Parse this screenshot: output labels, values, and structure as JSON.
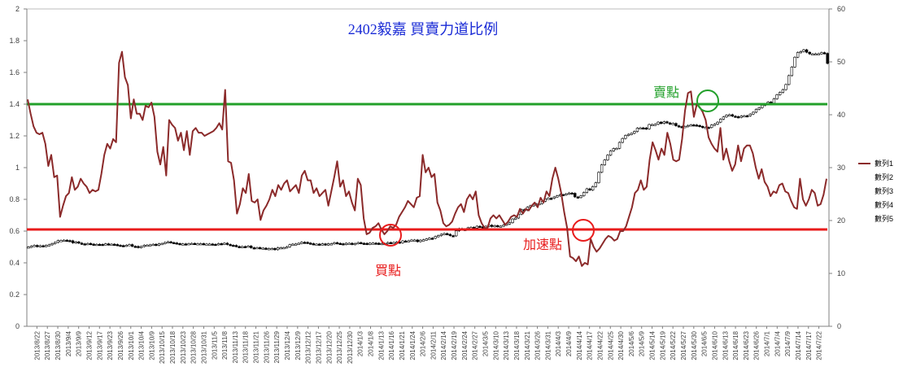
{
  "chart_data": {
    "type": "line",
    "title": "2402毅嘉 買賣力道比例",
    "y_left": {
      "min": 0,
      "max": 2,
      "ticks": [
        "0",
        "0.2",
        "0.4",
        "0.6",
        "0.8",
        "1",
        "1.2",
        "1.4",
        "1.6",
        "1.8",
        "2"
      ]
    },
    "y_right": {
      "min": 0,
      "max": 60,
      "ticks": [
        "0",
        "10",
        "20",
        "30",
        "40",
        "50",
        "60"
      ]
    },
    "x_labels": [
      "2013/8/22",
      "2013/8/27",
      "2013/8/30",
      "2013/9/4",
      "2013/9/9",
      "2013/9/12",
      "2013/9/17",
      "2013/9/23",
      "2013/9/26",
      "2013/10/1",
      "2013/10/4",
      "2013/10/9",
      "2013/10/15",
      "2013/10/18",
      "2013/10/23",
      "2013/10/28",
      "2013/10/31",
      "2013/11/5",
      "2013/11/8",
      "2013/11/13",
      "2013/11/18",
      "2013/11/21",
      "2013/11/26",
      "2013/11/29",
      "2013/12/4",
      "2013/12/9",
      "2013/12/12",
      "2013/12/17",
      "2013/12/20",
      "2013/12/25",
      "2013/12/30",
      "2014/1/3",
      "2014/1/8",
      "2014/1/13",
      "2014/1/16",
      "2014/1/21",
      "2014/1/24",
      "2014/2/6",
      "2014/2/11",
      "2014/2/14",
      "2014/2/19",
      "2014/2/24",
      "2014/2/27",
      "2014/3/5",
      "2014/3/10",
      "2014/3/13",
      "2014/3/18",
      "2014/3/21",
      "2014/3/26",
      "2014/3/31",
      "2014/4/3",
      "2014/4/9",
      "2014/4/14",
      "2014/4/17",
      "2014/4/22",
      "2014/4/25",
      "2014/4/30",
      "2014/5/6",
      "2014/5/9",
      "2014/5/14",
      "2014/5/19",
      "2014/5/22",
      "2014/5/27",
      "2014/5/30",
      "2014/6/5",
      "2014/6/10",
      "2014/6/13",
      "2014/6/18",
      "2014/6/23",
      "2014/6/26",
      "2014/7/1",
      "2014/7/4",
      "2014/7/9",
      "2014/7/14",
      "2014/7/17",
      "2014/7/22"
    ],
    "series": [
      {
        "name": "數列1",
        "color": "#8b2a2a",
        "axis": "left",
        "values": [
          1.43,
          1.34,
          1.26,
          1.22,
          1.21,
          1.22,
          1.15,
          1.01,
          1.08,
          0.94,
          0.95,
          0.69,
          0.76,
          0.82,
          0.84,
          0.94,
          0.86,
          0.88,
          0.93,
          0.9,
          0.88,
          0.84,
          0.86,
          0.85,
          0.86,
          0.96,
          1.08,
          1.15,
          1.12,
          1.18,
          1.16,
          1.66,
          1.73,
          1.57,
          1.52,
          1.31,
          1.43,
          1.34,
          1.34,
          1.3,
          1.39,
          1.38,
          1.41,
          1.32,
          1.1,
          1.02,
          1.13,
          0.95,
          1.3,
          1.27,
          1.25,
          1.17,
          1.22,
          1.11,
          1.23,
          1.08,
          1.23,
          1.25,
          1.22,
          1.22,
          1.2,
          1.21,
          1.22,
          1.23,
          1.25,
          1.28,
          1.24,
          1.49,
          1.04,
          1.03,
          0.92,
          0.71,
          0.77,
          0.87,
          0.84,
          0.96,
          0.79,
          0.78,
          0.8,
          0.67,
          0.73,
          0.76,
          0.8,
          0.86,
          0.82,
          0.89,
          0.86,
          0.9,
          0.92,
          0.85,
          0.87,
          0.89,
          0.84,
          0.95,
          0.98,
          0.92,
          0.92,
          0.84,
          0.87,
          0.82,
          0.84,
          0.86,
          0.76,
          0.85,
          0.94,
          1.04,
          0.88,
          0.92,
          0.82,
          0.85,
          0.78,
          0.73,
          0.93,
          0.89,
          0.68,
          0.58,
          0.59,
          0.62,
          0.63,
          0.65,
          0.61,
          0.58,
          0.6,
          0.63,
          0.62,
          0.64,
          0.69,
          0.72,
          0.75,
          0.79,
          0.77,
          0.75,
          0.81,
          0.82,
          1.08,
          0.97,
          1.0,
          0.94,
          0.96,
          0.78,
          0.73,
          0.65,
          0.63,
          0.64,
          0.66,
          0.71,
          0.75,
          0.77,
          0.72,
          0.8,
          0.83,
          0.8,
          0.85,
          0.7,
          0.65,
          0.62,
          0.62,
          0.68,
          0.7,
          0.68,
          0.7,
          0.67,
          0.64,
          0.66,
          0.69,
          0.7,
          0.69,
          0.74,
          0.71,
          0.74,
          0.73,
          0.76,
          0.78,
          0.75,
          0.81,
          0.78,
          0.85,
          0.82,
          0.93,
          1.0,
          0.93,
          0.84,
          0.72,
          0.62,
          0.44,
          0.43,
          0.41,
          0.44,
          0.38,
          0.4,
          0.39,
          0.55,
          0.5,
          0.47,
          0.49,
          0.52,
          0.55,
          0.57,
          0.56,
          0.54,
          0.55,
          0.6,
          0.6,
          0.63,
          0.69,
          0.75,
          0.84,
          0.86,
          0.92,
          0.86,
          0.88,
          1.05,
          1.16,
          1.11,
          1.05,
          1.12,
          1.08,
          1.22,
          1.15,
          1.05,
          1.04,
          1.05,
          1.18,
          1.36,
          1.47,
          1.48,
          1.32,
          1.4,
          1.38,
          1.35,
          1.3,
          1.19,
          1.15,
          1.12,
          1.1,
          1.25,
          1.05,
          1.12,
          1.04,
          0.98,
          1.02,
          1.14,
          1.04,
          1.12,
          1.14,
          1.14,
          1.09,
          1.0,
          0.93,
          0.99,
          0.91,
          0.88,
          0.82,
          0.85,
          0.84,
          0.89,
          0.9,
          0.85,
          0.84,
          0.79,
          0.75,
          0.74,
          0.93,
          0.8,
          0.76,
          0.8,
          0.86,
          0.84,
          0.76,
          0.77,
          0.83,
          0.93
        ]
      },
      {
        "name": "數列2"
      },
      {
        "name": "數列3"
      },
      {
        "name": "數列4"
      },
      {
        "name": "數列5"
      }
    ],
    "price_series_right_axis": {
      "color": "#000000",
      "closes": [
        15.0,
        15.15,
        15.3,
        15.06,
        15.24,
        15.12,
        15.3,
        15.42,
        15.64,
        15.86,
        16.2,
        16.22,
        16.29,
        16.22,
        16.17,
        15.78,
        15.96,
        15.73,
        15.59,
        15.52,
        15.66,
        15.54,
        15.41,
        15.5,
        15.49,
        15.47,
        15.59,
        15.45,
        15.53,
        15.46,
        15.33,
        15.26,
        15.21,
        15.34,
        15.45,
        15.13,
        15.11,
        14.9,
        15.08,
        15.33,
        15.36,
        15.4,
        15.51,
        15.33,
        15.58,
        15.66,
        15.85,
        15.98,
        15.83,
        15.76,
        15.65,
        15.5,
        15.58,
        15.53,
        15.63,
        15.67,
        15.57,
        15.62,
        15.63,
        15.54,
        15.56,
        15.56,
        15.5,
        15.45,
        15.63,
        15.55,
        15.71,
        15.47,
        15.33,
        15.29,
        15.09,
        14.94,
        15.08,
        15.06,
        15.18,
        14.85,
        14.8,
        14.88,
        14.73,
        14.78,
        14.59,
        14.7,
        14.72,
        14.49,
        14.86,
        14.87,
        14.88,
        15.02,
        15.42,
        15.54,
        15.56,
        15.7,
        15.89,
        15.88,
        15.74,
        15.62,
        15.55,
        15.55,
        15.45,
        15.59,
        15.39,
        15.6,
        15.61,
        15.81,
        15.68,
        15.61,
        15.5,
        15.7,
        15.7,
        15.5,
        15.65,
        15.83,
        15.7,
        15.69,
        15.53,
        15.72,
        15.73,
        15.71,
        15.55,
        15.66,
        15.65,
        15.84,
        15.83,
        15.85,
        15.94,
        15.78,
        16.14,
        16.07,
        16.17,
        16.32,
        16.32,
        16.0,
        16.29,
        16.35,
        16.51,
        16.66,
        16.63,
        16.97,
        17.15,
        17.4,
        17.54,
        17.39,
        17.14,
        17.09,
        18.04,
        18.47,
        18.31,
        18.31,
        18.63,
        18.71,
        18.57,
        18.92,
        18.82,
        18.63,
        18.92,
        19.12,
        18.86,
        19.04,
        18.86,
        18.94,
        19.16,
        19.33,
        19.59,
        20.28,
        20.47,
        21.19,
        22.06,
        21.95,
        22.53,
        22.8,
        22.93,
        23.12,
        23.2,
        23.63,
        24.1,
        24.21,
        24.19,
        24.46,
        24.67,
        24.9,
        24.85,
        25.04,
        25.21,
        25.15,
        24.46,
        24.34,
        24.67,
        25.3,
        26.0,
        25.76,
        26.42,
        27.14,
        29.11,
        30.53,
        31.44,
        32.35,
        33.16,
        33.6,
        33.65,
        34.77,
        35.51,
        36.08,
        36.3,
        36.48,
        36.83,
        37.46,
        37.52,
        37.5,
        37.33,
        38.15,
        38.15,
        38.19,
        38.6,
        38.36,
        38.68,
        38.46,
        38.27,
        38.36,
        37.91,
        37.76,
        37.66,
        37.78,
        37.96,
        38.09,
        38.06,
        37.97,
        37.8,
        37.58,
        37.62,
        37.58,
        38.05,
        38.21,
        38.59,
        39.16,
        39.58,
        39.92,
        40.01,
        39.73,
        39.63,
        39.52,
        39.75,
        39.81,
        39.8,
        40.12,
        40.47,
        41.02,
        41.33,
        41.79,
        42.01,
        42.4,
        42.2,
        43.01,
        43.78,
        44.22,
        44.75,
        45.71,
        47.4,
        49.02,
        50.88,
        51.77,
        51.95,
        52.28,
        51.81,
        51.5,
        51.5,
        51.53,
        51.54,
        51.74,
        51.6,
        49.7
      ]
    },
    "reference_lines": [
      {
        "name": "賣點",
        "value": 1.4,
        "color": "#22a02a"
      },
      {
        "name": "買點",
        "value": 0.61,
        "color": "#e81c1c"
      }
    ],
    "annotations": [
      {
        "text": "賣點",
        "color": "#22a02a"
      },
      {
        "text": "買點",
        "color": "#e81c1c"
      },
      {
        "text": "加速點",
        "color": "#e81c1c"
      }
    ],
    "legend_position": "right"
  }
}
